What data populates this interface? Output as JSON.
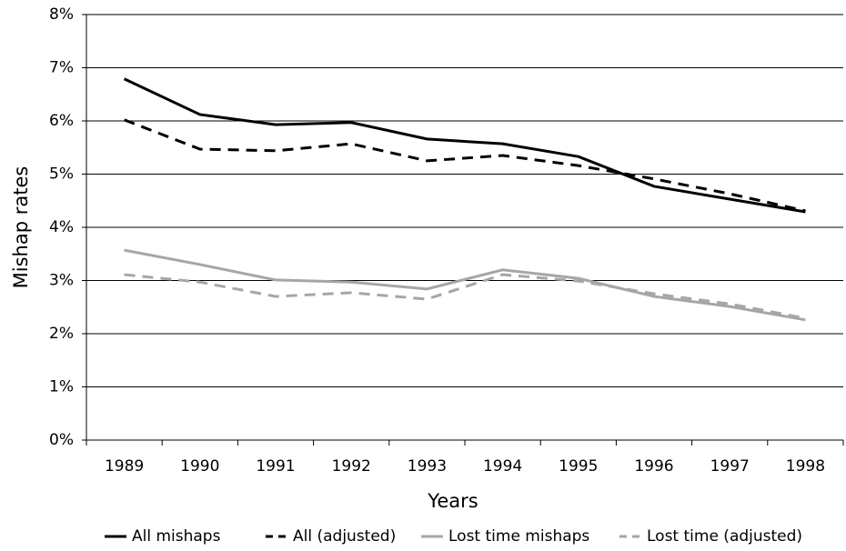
{
  "chart_data": {
    "type": "line",
    "x_label": "Years",
    "y_label": "Mishap rates",
    "categories": [
      "1989",
      "1990",
      "1991",
      "1992",
      "1993",
      "1994",
      "1995",
      "1996",
      "1997",
      "1998"
    ],
    "series": [
      {
        "name": "All mishaps",
        "color": "#000000",
        "linestyle": "solid",
        "values": [
          6.79,
          6.12,
          5.93,
          5.97,
          5.66,
          5.57,
          5.33,
          4.77,
          4.53,
          4.29
        ]
      },
      {
        "name": "All (adjusted)",
        "color": "#000000",
        "linestyle": "dashed",
        "values": [
          6.02,
          5.47,
          5.44,
          5.57,
          5.25,
          5.35,
          5.16,
          4.91,
          4.63,
          4.31
        ]
      },
      {
        "name": "Lost time mishaps",
        "color": "#a6a6a6",
        "linestyle": "solid",
        "values": [
          3.57,
          3.3,
          3.01,
          2.97,
          2.84,
          3.2,
          3.04,
          2.7,
          2.51,
          2.26
        ]
      },
      {
        "name": "Lost time (adjusted)",
        "color": "#a6a6a6",
        "linestyle": "dashed",
        "values": [
          3.11,
          2.97,
          2.7,
          2.77,
          2.65,
          3.11,
          2.99,
          2.75,
          2.56,
          2.29
        ]
      }
    ],
    "ylim": [
      0,
      8
    ],
    "yticks": [
      {
        "value": 0,
        "label": "0%"
      },
      {
        "value": 1,
        "label": "1%"
      },
      {
        "value": 2,
        "label": "2%"
      },
      {
        "value": 3,
        "label": "3%"
      },
      {
        "value": 4,
        "label": "4%"
      },
      {
        "value": 5,
        "label": "5%"
      },
      {
        "value": 6,
        "label": "6%"
      },
      {
        "value": 7,
        "label": "7%"
      },
      {
        "value": 8,
        "label": "8%"
      }
    ],
    "grid": true,
    "legend": "bottom"
  }
}
